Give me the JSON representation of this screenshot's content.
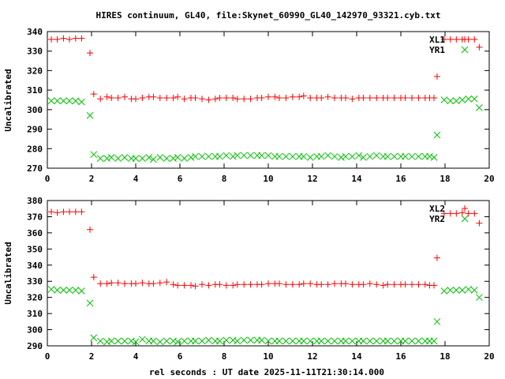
{
  "colors": {
    "xl": "#ff0000",
    "yr": "#00c000",
    "axis": "#000000"
  },
  "chart_data": {
    "type": "scatter",
    "title": "HIRES continuum, GL40, file:Skynet_60990_GL40_142970_93321.cyb.txt",
    "xlabel": "rel seconds : UT date 2025-11-11T21:30:14.000",
    "x": [
      0.18,
      0.45,
      0.73,
      1.0,
      1.28,
      1.55,
      1.93,
      2.1,
      2.4,
      2.7,
      2.9,
      3.2,
      3.5,
      3.8,
      4.0,
      4.3,
      4.6,
      4.8,
      5.1,
      5.4,
      5.7,
      5.9,
      6.2,
      6.5,
      6.7,
      7.0,
      7.3,
      7.6,
      7.8,
      8.1,
      8.4,
      8.6,
      8.9,
      9.2,
      9.5,
      9.7,
      10.0,
      10.3,
      10.5,
      10.8,
      11.1,
      11.4,
      11.6,
      11.9,
      12.2,
      12.4,
      12.7,
      13.0,
      13.3,
      13.5,
      13.8,
      14.1,
      14.3,
      14.6,
      14.9,
      15.2,
      15.4,
      15.7,
      16.0,
      16.2,
      16.5,
      16.8,
      17.1,
      17.3,
      17.5,
      17.64,
      17.96,
      18.24,
      18.51,
      18.78,
      19.06,
      19.33,
      19.55
    ],
    "panels": [
      {
        "ylabel": "Uncalibrated",
        "ylim": [
          270,
          340
        ],
        "yticks": [
          270,
          280,
          290,
          300,
          310,
          320,
          330,
          340
        ],
        "xlim": [
          0,
          20
        ],
        "xticks": [
          0,
          2,
          4,
          6,
          8,
          10,
          12,
          14,
          16,
          18,
          20
        ],
        "legend_position": "top-right",
        "series": [
          {
            "name": "XL1",
            "marker": "plus",
            "color_key": "xl",
            "values": [
              336,
              336,
              336.5,
              336,
              336.5,
              336.5,
              329,
              308,
              305.5,
              306.5,
              306,
              306,
              306.5,
              305.5,
              305.5,
              306,
              306.5,
              306.5,
              306,
              306,
              306,
              306.5,
              305.5,
              306,
              306,
              305.5,
              305,
              305.5,
              306,
              306,
              306,
              305.5,
              305.5,
              305.5,
              306,
              306,
              306.5,
              306.5,
              306,
              306,
              306.5,
              306.5,
              307,
              306,
              306,
              306,
              306.5,
              306,
              306,
              306,
              305.5,
              306,
              306,
              306,
              306,
              306,
              306,
              306,
              306,
              306,
              306,
              306,
              306,
              306,
              306,
              317,
              336,
              336,
              336,
              336,
              336,
              336,
              332
            ]
          },
          {
            "name": "YR1",
            "marker": "cross",
            "color_key": "yr",
            "values": [
              304.5,
              304.5,
              304.5,
              304.5,
              304.5,
              304,
              297,
              277,
              275,
              275,
              275.5,
              275,
              275.5,
              275,
              275,
              275,
              275.5,
              274.5,
              275.5,
              275,
              275,
              275.5,
              275,
              275.5,
              276,
              276,
              276,
              276,
              276,
              276.5,
              276,
              276.5,
              276.5,
              276.5,
              276.5,
              276.5,
              276.5,
              276,
              276,
              276,
              276,
              276,
              276,
              275.5,
              276,
              276,
              276.5,
              276,
              275.5,
              276,
              276,
              276.5,
              275.5,
              276,
              276.5,
              276,
              276,
              276,
              276,
              276,
              276,
              276,
              276,
              276,
              275.5,
              287,
              305,
              304.5,
              304.5,
              305,
              305.5,
              305.5,
              301
            ]
          }
        ]
      },
      {
        "ylabel": "Uncalibrated",
        "ylim": [
          290,
          380
        ],
        "yticks": [
          290,
          300,
          310,
          320,
          330,
          340,
          350,
          360,
          370,
          380
        ],
        "xlim": [
          0,
          20
        ],
        "xticks": [
          0,
          2,
          4,
          6,
          8,
          10,
          12,
          14,
          16,
          18,
          20
        ],
        "legend_position": "top-right",
        "series": [
          {
            "name": "XL2",
            "marker": "plus",
            "color_key": "xl",
            "values": [
              373,
              372.5,
              373,
              373,
              373,
              373,
              362,
              332.5,
              328.5,
              328.5,
              329,
              329,
              328.5,
              328.5,
              328.5,
              329,
              328.5,
              328.5,
              329,
              329.5,
              328,
              327.5,
              327.5,
              327.5,
              327,
              328,
              327.5,
              328,
              328,
              327.5,
              327.5,
              328,
              328,
              328,
              328,
              328,
              328.5,
              328.5,
              328.5,
              328,
              328,
              328,
              328.5,
              328.5,
              328,
              328,
              328,
              328.5,
              328.5,
              328.5,
              328,
              328,
              328,
              328.5,
              328,
              327.5,
              328,
              328,
              328,
              328,
              328,
              328,
              328,
              327.5,
              327.5,
              344.5,
              372,
              372,
              372,
              372.5,
              372,
              372,
              366
            ]
          },
          {
            "name": "YR2",
            "marker": "cross",
            "color_key": "yr",
            "values": [
              325,
              324.5,
              324.5,
              324.5,
              324.5,
              324,
              316.5,
              295,
              293,
              292.5,
              293,
              293,
              293,
              293,
              292.5,
              294,
              293,
              293,
              292.5,
              293,
              293,
              292.5,
              293,
              293,
              293,
              293,
              293.5,
              293,
              293,
              293.5,
              293.5,
              293,
              293.5,
              293.5,
              293.5,
              293.5,
              293,
              293,
              293,
              293,
              293,
              293,
              293,
              293,
              293,
              293,
              293,
              293,
              293,
              293,
              293,
              293,
              293,
              293,
              293,
              293,
              293,
              293,
              293,
              293,
              293,
              293,
              293,
              293,
              293,
              305,
              324,
              324.5,
              324.5,
              324.5,
              325,
              324.5,
              320
            ]
          }
        ]
      }
    ]
  }
}
